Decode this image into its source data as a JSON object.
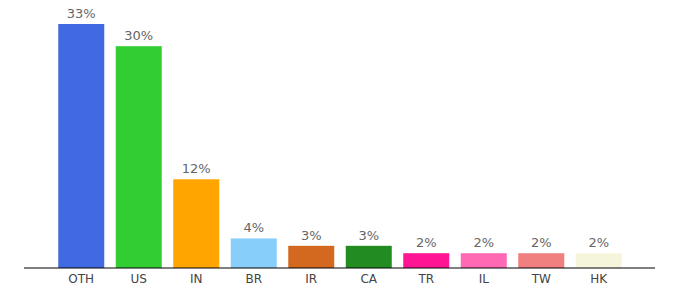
{
  "chart_data": {
    "type": "bar",
    "categories": [
      "OTH",
      "US",
      "IN",
      "BR",
      "IR",
      "CA",
      "TR",
      "IL",
      "TW",
      "HK"
    ],
    "values": [
      33,
      30,
      12,
      4,
      3,
      3,
      2,
      2,
      2,
      2
    ],
    "value_labels": [
      "33%",
      "30%",
      "12%",
      "4%",
      "3%",
      "3%",
      "2%",
      "2%",
      "2%",
      "2%"
    ],
    "colors": [
      "#4169e1",
      "#32cd32",
      "#ffa500",
      "#87cefa",
      "#d2691e",
      "#228b22",
      "#ff1493",
      "#ff69b4",
      "#f08080",
      "#f5f5dc"
    ],
    "ylim": [
      0,
      33
    ],
    "data_labels": true,
    "tick_labels": "x",
    "grid": false
  }
}
